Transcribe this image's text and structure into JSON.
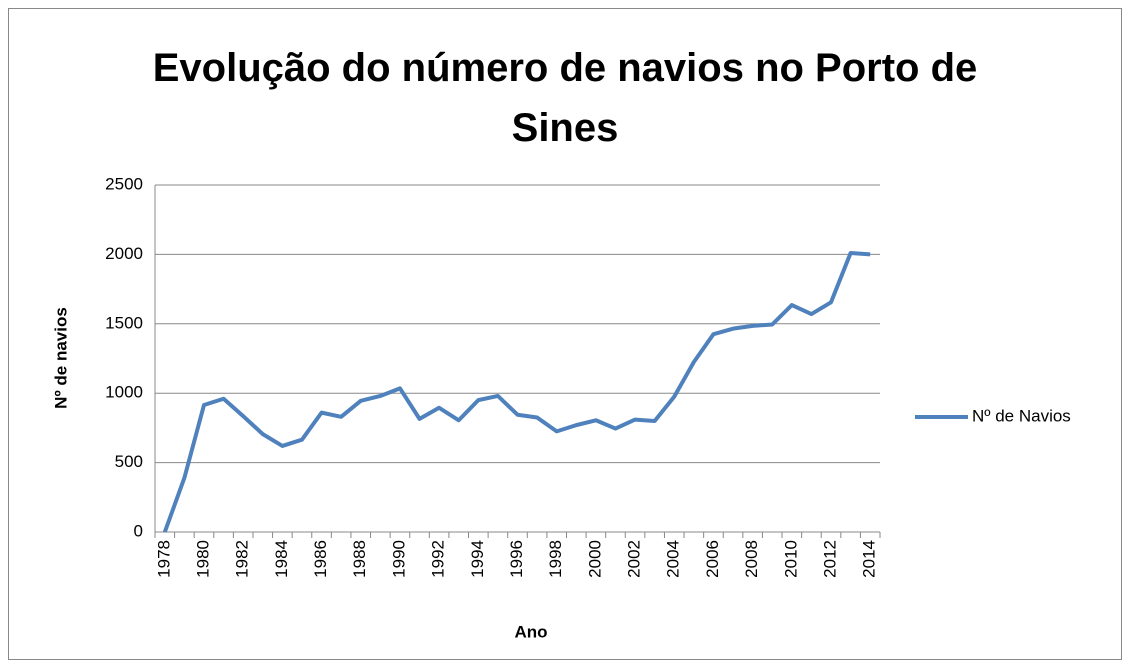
{
  "chart_data": {
    "type": "line",
    "title": "Evolução do número de navios no Porto de Sines",
    "x_label": "Ano",
    "y_label": "Nº de navios",
    "categories": [
      "1978",
      null,
      "1980",
      null,
      "1982",
      null,
      "1984",
      null,
      "1986",
      null,
      "1988",
      null,
      "1990",
      null,
      "1992",
      null,
      "1994",
      null,
      "1996",
      null,
      "1998",
      null,
      "2000",
      null,
      "2002",
      null,
      "2004",
      null,
      "2006",
      null,
      "2008",
      null,
      "2010",
      null,
      "2012",
      null,
      "2014"
    ],
    "series": [
      {
        "name": "Nº de Navios",
        "color": "#4f81bd",
        "values": [
          0,
          390,
          915,
          960,
          835,
          705,
          620,
          665,
          860,
          830,
          945,
          980,
          1035,
          815,
          895,
          805,
          950,
          980,
          845,
          825,
          725,
          770,
          805,
          745,
          810,
          800,
          975,
          1225,
          1425,
          1465,
          1485,
          1495,
          1635,
          1570,
          1655,
          2010,
          2000
        ]
      }
    ],
    "ylim": [
      0,
      2500
    ],
    "yticks": [
      0,
      500,
      1000,
      1500,
      2000,
      2500
    ],
    "grid": true,
    "legend": "right"
  }
}
